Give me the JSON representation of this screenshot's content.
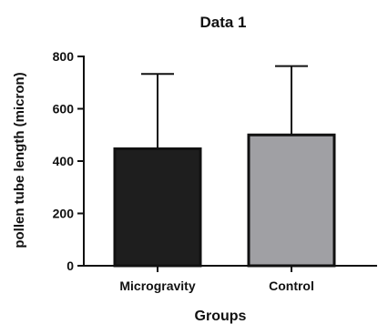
{
  "chart_data": {
    "type": "bar",
    "title": "Data 1",
    "xlabel": "Groups",
    "ylabel": "pollen tube length (micron)",
    "ylim": [
      0,
      800
    ],
    "yticks": [
      0,
      200,
      400,
      600,
      800
    ],
    "categories": [
      "Microgravity",
      "Control"
    ],
    "values": [
      447,
      500
    ],
    "error_upper": [
      733,
      763
    ],
    "bar_colors": [
      "#1e1e1e",
      "#a0a0a4"
    ],
    "grid": false
  }
}
